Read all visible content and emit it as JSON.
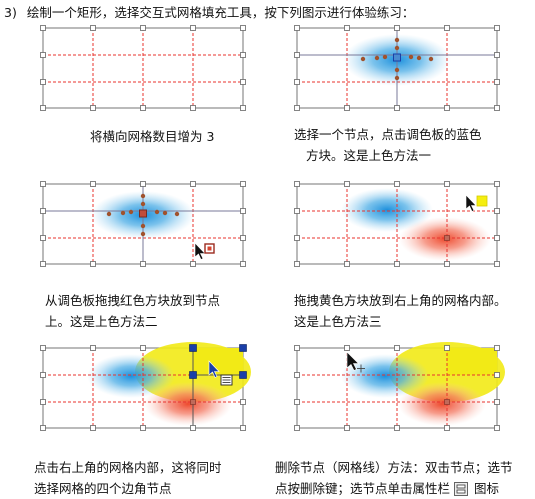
{
  "heading": {
    "number": "3)",
    "text": "绘制一个矩形，选择交互式网格填充工具，按下列图示进行体验练习："
  },
  "steps": [
    {
      "caption": [
        "将横向网格数目增为 3"
      ]
    },
    {
      "caption": [
        "选择一个节点，点击调色板的蓝色",
        "方块。这是上色方法一"
      ]
    },
    {
      "caption": [
        "从调色板拖拽红色方块放到节点",
        "上。这是上色方法二"
      ]
    },
    {
      "caption": [
        "拖拽黄色方块放到右上角的网格内部。",
        "这是上色方法三"
      ]
    },
    {
      "caption": [
        "点击右上角的网格内部，这将同时",
        "选择网格的四个边角节点"
      ]
    },
    {
      "caption": [
        "删除节点（网格线）方法：双击节点；选节",
        "点按删除键；选节点单击属性栏",
        "图标"
      ]
    }
  ],
  "colors": {
    "grid_line": "#e8332e",
    "frame": "#8c8c8c",
    "blue": "#2f9be0",
    "red": "#f0573d",
    "yellow": "#f2ea16",
    "selection": "#1a3fa8"
  }
}
